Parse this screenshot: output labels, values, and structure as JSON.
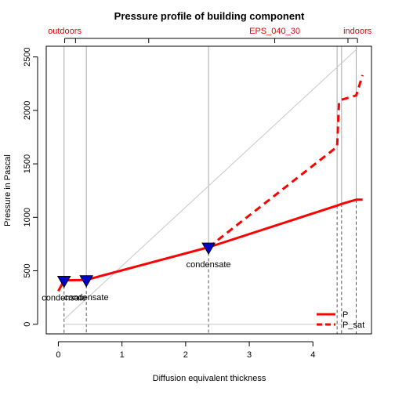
{
  "chart_data": {
    "type": "line",
    "title": "Pressure profile of building component",
    "xlabel": "Diffusion equivalent thickness",
    "ylabel": "Pressure in Pascal",
    "xlim": [
      -0.19,
      4.92
    ],
    "ylim": [
      -90,
      2600
    ],
    "x_ticks": [
      0,
      1,
      2,
      3,
      4
    ],
    "y_ticks": [
      0,
      500,
      1000,
      1500,
      2000,
      2500
    ],
    "top_labels": [
      {
        "x": 0.1,
        "label": "outdoors"
      },
      {
        "x": 3.4,
        "label": "EPS_040_30"
      },
      {
        "x": 4.7,
        "label": "indoors"
      }
    ],
    "top_ticks": [
      0.1,
      0.27,
      1.42,
      3.4,
      4.55,
      4.7
    ],
    "layer_boundaries": [
      0.09,
      0.44,
      2.36,
      4.38,
      4.45,
      4.68
    ],
    "diagonal": {
      "x": [
        0.1,
        4.7
      ],
      "y": [
        50,
        2580
      ]
    },
    "series": [
      {
        "name": "P",
        "style": "solid",
        "color": "#ff0000",
        "x": [
          0.0,
          0.09,
          0.44,
          2.36,
          4.38,
          4.45,
          4.68,
          4.78
        ],
        "y": [
          310,
          410,
          415,
          720,
          1110,
          1125,
          1165,
          1165
        ]
      },
      {
        "name": "P_sat",
        "style": "dashed",
        "color": "#ff0000",
        "x": [
          2.36,
          4.38,
          4.41,
          4.45,
          4.68,
          4.78
        ],
        "y": [
          720,
          1660,
          2080,
          2100,
          2140,
          2330
        ]
      }
    ],
    "condensation_points": [
      {
        "x": 0.09,
        "y": 405,
        "label": "condensate"
      },
      {
        "x": 0.44,
        "y": 410,
        "label": "condensate"
      },
      {
        "x": 2.36,
        "y": 715,
        "label": "condensate"
      }
    ],
    "condensation_marker_color": "#0000cc",
    "legend": {
      "position": "bottom-right",
      "entries": [
        "P",
        "P_sat"
      ]
    }
  }
}
